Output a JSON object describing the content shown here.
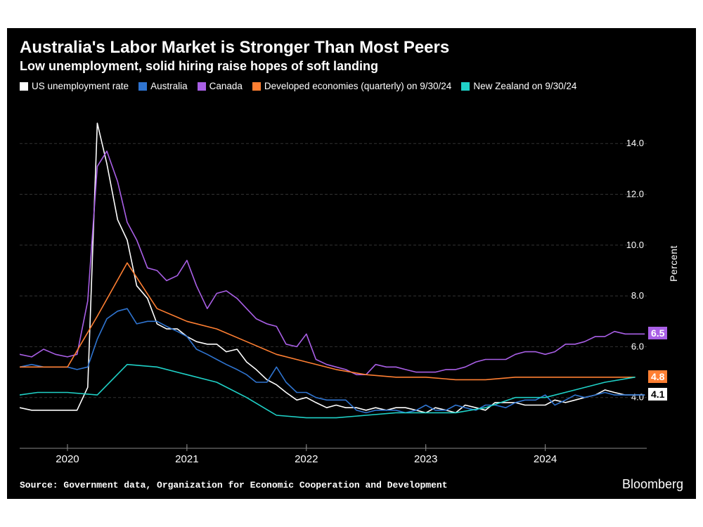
{
  "title": "Australia's Labor Market is Stronger Than Most Peers",
  "subtitle": "Low unemployment, solid hiring raise hopes of soft landing",
  "legend": [
    {
      "label": "US unemployment rate",
      "color": "#ffffff"
    },
    {
      "label": "Australia",
      "color": "#2f74d0"
    },
    {
      "label": "Canada",
      "color": "#a95fe6"
    },
    {
      "label": "Developed economies (quarterly) on 9/30/24",
      "color": "#ff7f32"
    },
    {
      "label": "New Zealand on 9/30/24",
      "color": "#1fd1c7"
    }
  ],
  "chart": {
    "type": "line",
    "background_color": "#000000",
    "grid_color": "#333333",
    "axis_color": "#888888",
    "text_color": "#ffffff",
    "y_axis_title": "Percent",
    "x_range": [
      2019.6,
      2024.85
    ],
    "y_range": [
      2.0,
      15.5
    ],
    "y_ticks": [
      4.0,
      6.0,
      8.0,
      10.0,
      12.0,
      14.0
    ],
    "y_tick_labels": [
      "4.0",
      "6.0",
      "8.0",
      "10.0",
      "12.0",
      "14.0"
    ],
    "x_ticks": [
      2020,
      2021,
      2022,
      2023,
      2024
    ],
    "x_tick_labels": [
      "2020",
      "2021",
      "2022",
      "2023",
      "2024"
    ],
    "series": [
      {
        "name": "US unemployment rate",
        "color": "#ffffff",
        "width": 1.6,
        "end_label": "4.1",
        "end_label_bg": "#ffffff",
        "end_label_fg": "#000000",
        "points": [
          [
            2019.6,
            3.6
          ],
          [
            2019.7,
            3.5
          ],
          [
            2019.8,
            3.5
          ],
          [
            2019.9,
            3.5
          ],
          [
            2020.0,
            3.5
          ],
          [
            2020.08,
            3.5
          ],
          [
            2020.17,
            4.4
          ],
          [
            2020.25,
            14.8
          ],
          [
            2020.33,
            13.2
          ],
          [
            2020.42,
            11.0
          ],
          [
            2020.5,
            10.2
          ],
          [
            2020.58,
            8.4
          ],
          [
            2020.67,
            7.9
          ],
          [
            2020.75,
            6.9
          ],
          [
            2020.83,
            6.7
          ],
          [
            2020.92,
            6.7
          ],
          [
            2021.0,
            6.4
          ],
          [
            2021.08,
            6.2
          ],
          [
            2021.17,
            6.1
          ],
          [
            2021.25,
            6.1
          ],
          [
            2021.33,
            5.8
          ],
          [
            2021.42,
            5.9
          ],
          [
            2021.5,
            5.4
          ],
          [
            2021.58,
            5.1
          ],
          [
            2021.67,
            4.7
          ],
          [
            2021.75,
            4.5
          ],
          [
            2021.83,
            4.2
          ],
          [
            2021.92,
            3.9
          ],
          [
            2022.0,
            4.0
          ],
          [
            2022.08,
            3.8
          ],
          [
            2022.17,
            3.6
          ],
          [
            2022.25,
            3.7
          ],
          [
            2022.33,
            3.6
          ],
          [
            2022.42,
            3.6
          ],
          [
            2022.5,
            3.5
          ],
          [
            2022.58,
            3.6
          ],
          [
            2022.67,
            3.5
          ],
          [
            2022.75,
            3.6
          ],
          [
            2022.83,
            3.6
          ],
          [
            2022.92,
            3.5
          ],
          [
            2023.0,
            3.4
          ],
          [
            2023.08,
            3.6
          ],
          [
            2023.17,
            3.5
          ],
          [
            2023.25,
            3.4
          ],
          [
            2023.33,
            3.7
          ],
          [
            2023.42,
            3.6
          ],
          [
            2023.5,
            3.5
          ],
          [
            2023.58,
            3.8
          ],
          [
            2023.67,
            3.8
          ],
          [
            2023.75,
            3.8
          ],
          [
            2023.83,
            3.7
          ],
          [
            2023.92,
            3.7
          ],
          [
            2024.0,
            3.7
          ],
          [
            2024.08,
            3.9
          ],
          [
            2024.17,
            3.8
          ],
          [
            2024.25,
            3.9
          ],
          [
            2024.33,
            4.0
          ],
          [
            2024.42,
            4.1
          ],
          [
            2024.5,
            4.3
          ],
          [
            2024.58,
            4.2
          ],
          [
            2024.67,
            4.1
          ],
          [
            2024.75,
            4.1
          ],
          [
            2024.83,
            4.1
          ]
        ]
      },
      {
        "name": "Australia",
        "color": "#2f74d0",
        "width": 1.6,
        "points": [
          [
            2019.6,
            5.2
          ],
          [
            2019.7,
            5.3
          ],
          [
            2019.8,
            5.2
          ],
          [
            2019.9,
            5.2
          ],
          [
            2020.0,
            5.2
          ],
          [
            2020.08,
            5.1
          ],
          [
            2020.17,
            5.2
          ],
          [
            2020.25,
            6.3
          ],
          [
            2020.33,
            7.1
          ],
          [
            2020.42,
            7.4
          ],
          [
            2020.5,
            7.5
          ],
          [
            2020.58,
            6.9
          ],
          [
            2020.67,
            7.0
          ],
          [
            2020.75,
            7.0
          ],
          [
            2020.83,
            6.8
          ],
          [
            2020.92,
            6.6
          ],
          [
            2021.0,
            6.4
          ],
          [
            2021.08,
            5.9
          ],
          [
            2021.17,
            5.7
          ],
          [
            2021.25,
            5.5
          ],
          [
            2021.33,
            5.3
          ],
          [
            2021.42,
            5.1
          ],
          [
            2021.5,
            4.9
          ],
          [
            2021.58,
            4.6
          ],
          [
            2021.67,
            4.6
          ],
          [
            2021.75,
            5.2
          ],
          [
            2021.83,
            4.6
          ],
          [
            2021.92,
            4.2
          ],
          [
            2022.0,
            4.2
          ],
          [
            2022.08,
            4.0
          ],
          [
            2022.17,
            3.9
          ],
          [
            2022.25,
            3.9
          ],
          [
            2022.33,
            3.9
          ],
          [
            2022.42,
            3.5
          ],
          [
            2022.5,
            3.4
          ],
          [
            2022.58,
            3.5
          ],
          [
            2022.67,
            3.5
          ],
          [
            2022.75,
            3.5
          ],
          [
            2022.83,
            3.4
          ],
          [
            2022.92,
            3.5
          ],
          [
            2023.0,
            3.7
          ],
          [
            2023.08,
            3.5
          ],
          [
            2023.17,
            3.5
          ],
          [
            2023.25,
            3.7
          ],
          [
            2023.33,
            3.6
          ],
          [
            2023.42,
            3.5
          ],
          [
            2023.5,
            3.7
          ],
          [
            2023.58,
            3.7
          ],
          [
            2023.67,
            3.6
          ],
          [
            2023.75,
            3.8
          ],
          [
            2023.83,
            3.9
          ],
          [
            2023.92,
            3.9
          ],
          [
            2024.0,
            4.1
          ],
          [
            2024.08,
            3.7
          ],
          [
            2024.17,
            3.9
          ],
          [
            2024.25,
            4.1
          ],
          [
            2024.33,
            4.0
          ],
          [
            2024.42,
            4.1
          ],
          [
            2024.5,
            4.2
          ],
          [
            2024.58,
            4.1
          ],
          [
            2024.67,
            4.1
          ],
          [
            2024.75,
            4.1
          ],
          [
            2024.83,
            4.1
          ]
        ]
      },
      {
        "name": "Canada",
        "color": "#a95fe6",
        "width": 1.6,
        "end_label": "6.5",
        "end_label_bg": "#a95fe6",
        "end_label_fg": "#ffffff",
        "points": [
          [
            2019.6,
            5.7
          ],
          [
            2019.7,
            5.6
          ],
          [
            2019.8,
            5.9
          ],
          [
            2019.9,
            5.7
          ],
          [
            2020.0,
            5.6
          ],
          [
            2020.08,
            5.7
          ],
          [
            2020.17,
            7.8
          ],
          [
            2020.25,
            13.1
          ],
          [
            2020.33,
            13.7
          ],
          [
            2020.42,
            12.5
          ],
          [
            2020.5,
            10.9
          ],
          [
            2020.58,
            10.2
          ],
          [
            2020.67,
            9.1
          ],
          [
            2020.75,
            9.0
          ],
          [
            2020.83,
            8.6
          ],
          [
            2020.92,
            8.8
          ],
          [
            2021.0,
            9.4
          ],
          [
            2021.08,
            8.4
          ],
          [
            2021.17,
            7.5
          ],
          [
            2021.25,
            8.1
          ],
          [
            2021.33,
            8.2
          ],
          [
            2021.42,
            7.9
          ],
          [
            2021.5,
            7.5
          ],
          [
            2021.58,
            7.1
          ],
          [
            2021.67,
            6.9
          ],
          [
            2021.75,
            6.8
          ],
          [
            2021.83,
            6.1
          ],
          [
            2021.92,
            6.0
          ],
          [
            2022.0,
            6.5
          ],
          [
            2022.08,
            5.5
          ],
          [
            2022.17,
            5.3
          ],
          [
            2022.25,
            5.2
          ],
          [
            2022.33,
            5.1
          ],
          [
            2022.42,
            4.9
          ],
          [
            2022.5,
            4.9
          ],
          [
            2022.58,
            5.3
          ],
          [
            2022.67,
            5.2
          ],
          [
            2022.75,
            5.2
          ],
          [
            2022.83,
            5.1
          ],
          [
            2022.92,
            5.0
          ],
          [
            2023.0,
            5.0
          ],
          [
            2023.08,
            5.0
          ],
          [
            2023.17,
            5.1
          ],
          [
            2023.25,
            5.1
          ],
          [
            2023.33,
            5.2
          ],
          [
            2023.42,
            5.4
          ],
          [
            2023.5,
            5.5
          ],
          [
            2023.58,
            5.5
          ],
          [
            2023.67,
            5.5
          ],
          [
            2023.75,
            5.7
          ],
          [
            2023.83,
            5.8
          ],
          [
            2023.92,
            5.8
          ],
          [
            2024.0,
            5.7
          ],
          [
            2024.08,
            5.8
          ],
          [
            2024.17,
            6.1
          ],
          [
            2024.25,
            6.1
          ],
          [
            2024.33,
            6.2
          ],
          [
            2024.42,
            6.4
          ],
          [
            2024.5,
            6.4
          ],
          [
            2024.58,
            6.6
          ],
          [
            2024.67,
            6.5
          ],
          [
            2024.75,
            6.5
          ],
          [
            2024.83,
            6.5
          ]
        ]
      },
      {
        "name": "Developed economies (quarterly)",
        "color": "#ff7f32",
        "width": 1.6,
        "end_label": "4.8",
        "end_label_bg": "#ff7f32",
        "end_label_fg": "#ffffff",
        "points": [
          [
            2019.6,
            5.2
          ],
          [
            2019.75,
            5.2
          ],
          [
            2020.0,
            5.2
          ],
          [
            2020.25,
            7.2
          ],
          [
            2020.5,
            9.3
          ],
          [
            2020.75,
            7.5
          ],
          [
            2021.0,
            7.0
          ],
          [
            2021.25,
            6.7
          ],
          [
            2021.5,
            6.2
          ],
          [
            2021.75,
            5.7
          ],
          [
            2022.0,
            5.4
          ],
          [
            2022.25,
            5.1
          ],
          [
            2022.5,
            4.9
          ],
          [
            2022.75,
            4.8
          ],
          [
            2023.0,
            4.8
          ],
          [
            2023.25,
            4.7
          ],
          [
            2023.5,
            4.7
          ],
          [
            2023.75,
            4.8
          ],
          [
            2024.0,
            4.8
          ],
          [
            2024.25,
            4.8
          ],
          [
            2024.5,
            4.8
          ],
          [
            2024.75,
            4.8
          ]
        ]
      },
      {
        "name": "New Zealand",
        "color": "#1fd1c7",
        "width": 1.6,
        "points": [
          [
            2019.6,
            4.1
          ],
          [
            2019.75,
            4.2
          ],
          [
            2020.0,
            4.2
          ],
          [
            2020.25,
            4.1
          ],
          [
            2020.5,
            5.3
          ],
          [
            2020.75,
            5.2
          ],
          [
            2021.0,
            4.9
          ],
          [
            2021.25,
            4.6
          ],
          [
            2021.5,
            4.0
          ],
          [
            2021.75,
            3.3
          ],
          [
            2022.0,
            3.2
          ],
          [
            2022.25,
            3.2
          ],
          [
            2022.5,
            3.3
          ],
          [
            2022.75,
            3.4
          ],
          [
            2023.0,
            3.4
          ],
          [
            2023.25,
            3.4
          ],
          [
            2023.5,
            3.6
          ],
          [
            2023.75,
            4.0
          ],
          [
            2024.0,
            4.0
          ],
          [
            2024.25,
            4.3
          ],
          [
            2024.5,
            4.6
          ],
          [
            2024.75,
            4.8
          ]
        ]
      }
    ]
  },
  "source": "Source: Government data, Organization for Economic Cooperation and Development",
  "brand": "Bloomberg"
}
